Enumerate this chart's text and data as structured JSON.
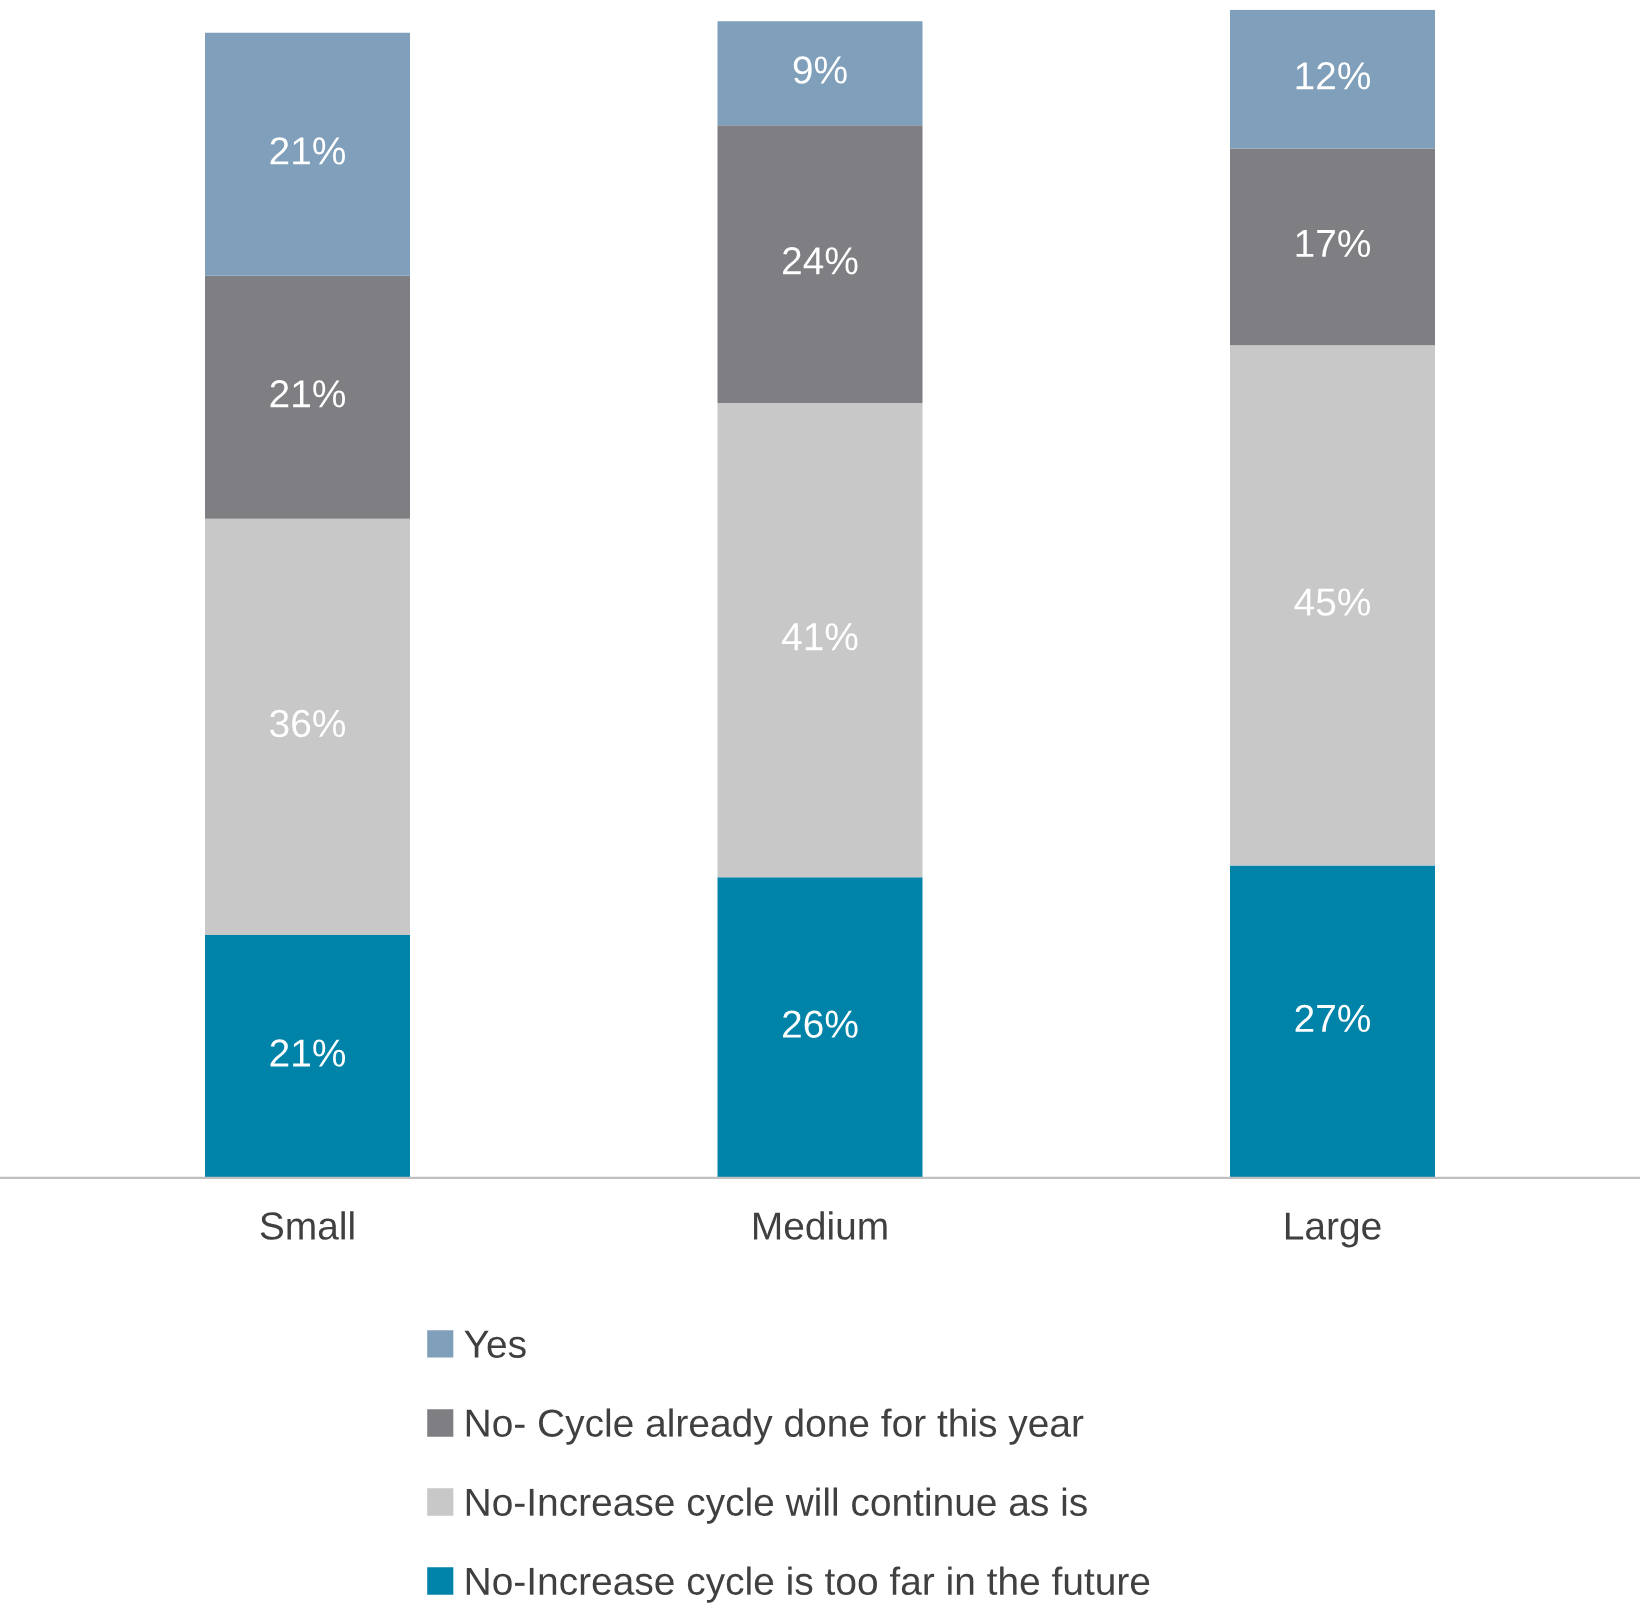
{
  "chart_data": {
    "type": "bar",
    "stacked": true,
    "categories": [
      "Small",
      "Medium",
      "Large"
    ],
    "series": [
      {
        "name": "No-Increase cycle is too far in the future",
        "color": "#0083a8",
        "values": [
          21,
          26,
          27
        ],
        "value_labels": [
          "21%",
          "26%",
          "27%"
        ]
      },
      {
        "name": "No-Increase cycle will continue as is",
        "color": "#c8c8c8",
        "values": [
          36,
          41,
          45
        ],
        "value_labels": [
          "36%",
          "41%",
          "45%"
        ]
      },
      {
        "name": "No- Cycle already done for this year",
        "color": "#7f7f83",
        "values": [
          21,
          24,
          17
        ],
        "value_labels": [
          "21%",
          "24%",
          "17%"
        ]
      },
      {
        "name": "Yes",
        "color": "#7f9fba",
        "values": [
          21,
          9,
          12
        ],
        "value_labels": [
          "21%",
          "9%",
          "12%"
        ]
      }
    ],
    "legend": "bottom",
    "grid": false
  }
}
